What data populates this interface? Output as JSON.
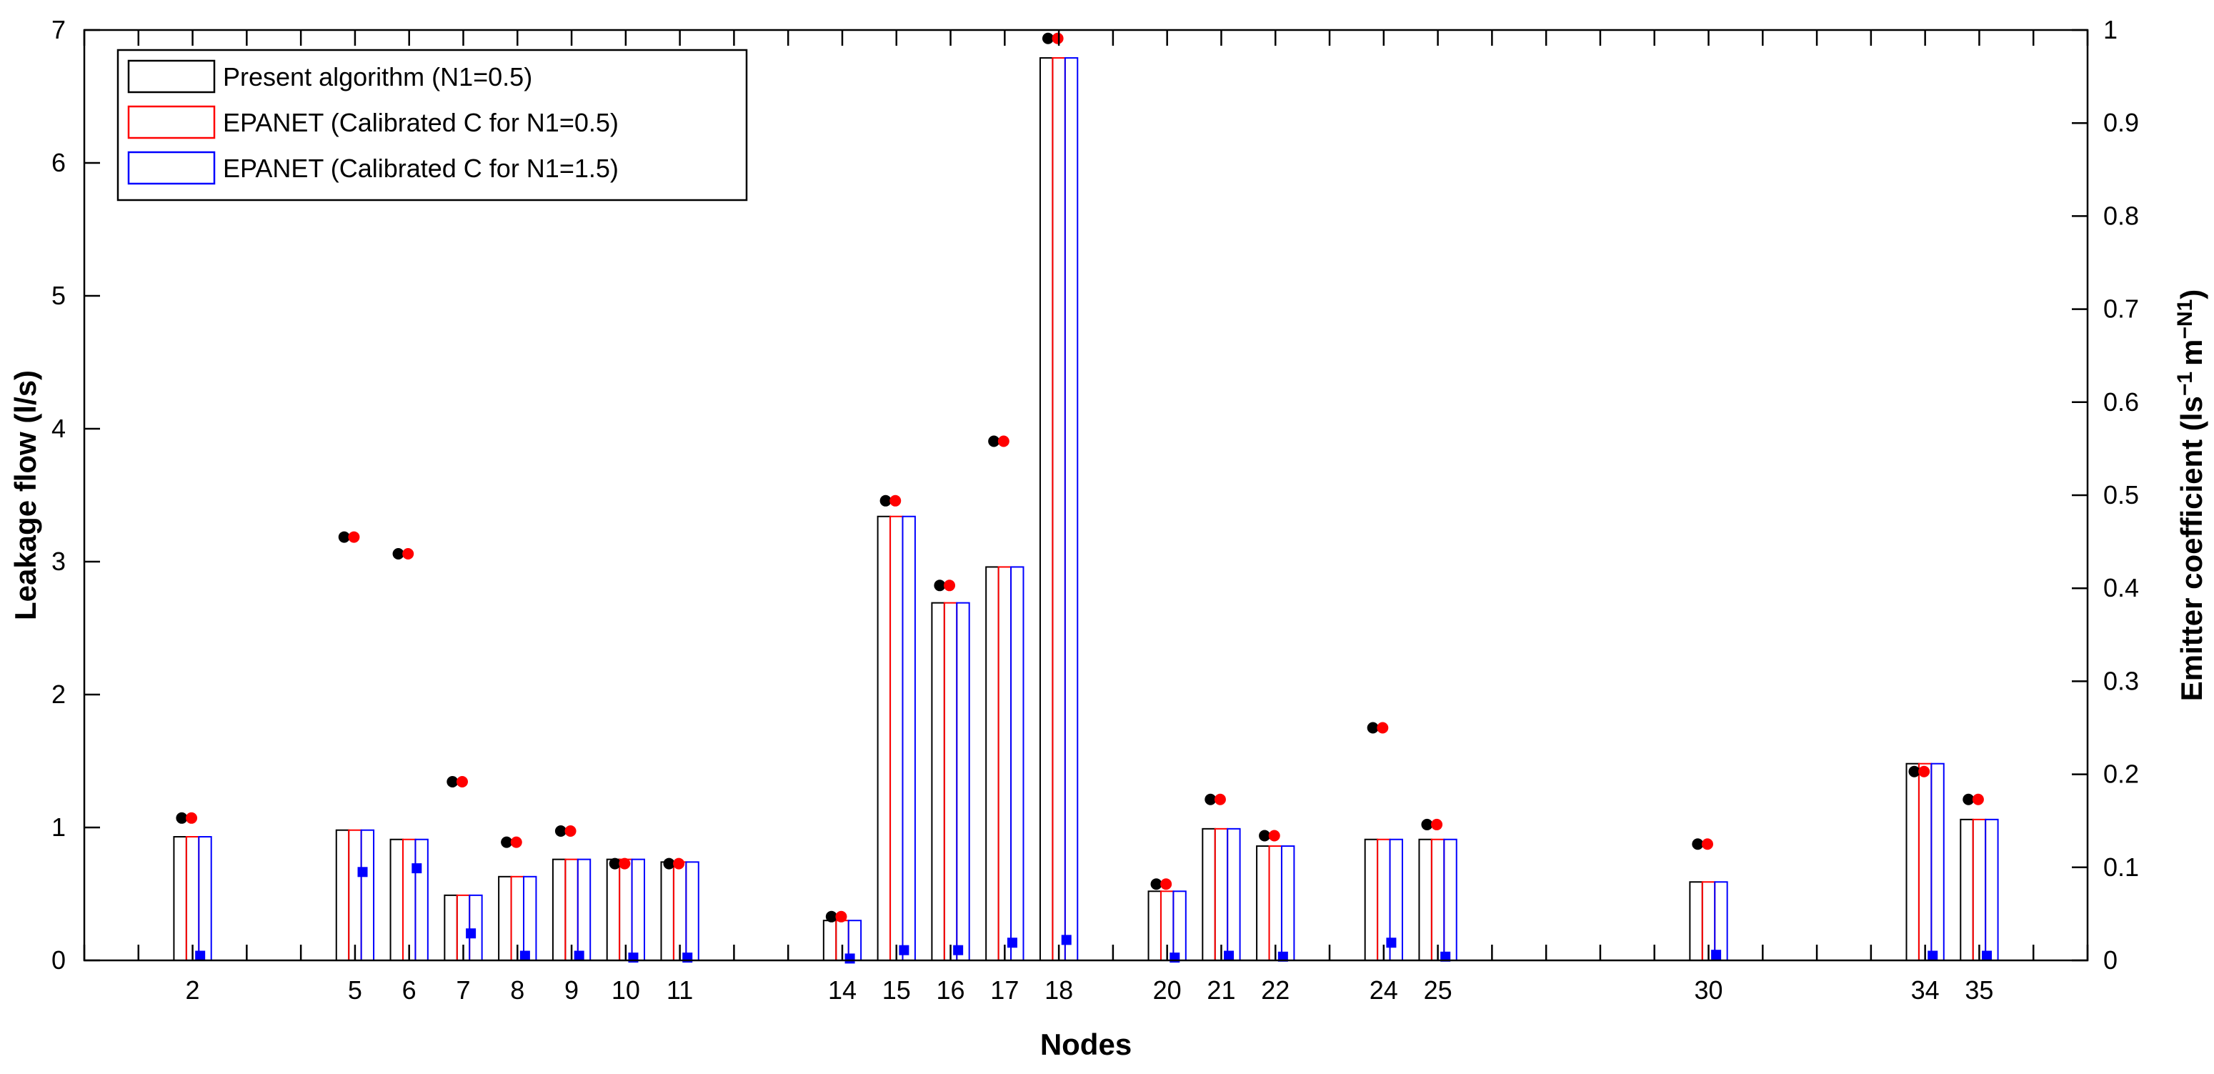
{
  "chart_data": {
    "type": "bar",
    "title": "",
    "xlabel": "Nodes",
    "ylabel": "Leakage flow (l/s)",
    "y2label": "Emitter coefficient (ls",
    "y2label_sup1": "−1",
    "y2label_mid": "m",
    "y2label_sup2": "−N1",
    "y2label_end": ")",
    "ylim": [
      0,
      7
    ],
    "y2lim": [
      0,
      1
    ],
    "yticks": [
      0,
      1,
      2,
      3,
      4,
      5,
      6,
      7
    ],
    "y2ticks": [
      0,
      0.1,
      0.2,
      0.3,
      0.4,
      0.5,
      0.6,
      0.7,
      0.8,
      0.9,
      1
    ],
    "y2tick_labels": [
      "0",
      "0.1",
      "0.2",
      "0.3",
      "0.4",
      "0.5",
      "0.6",
      "0.7",
      "0.8",
      "0.9",
      "1"
    ],
    "x_range": [
      0,
      37
    ],
    "grid": false,
    "legend_position": "top-left",
    "categories": [
      "2",
      "5",
      "6",
      "7",
      "8",
      "9",
      "10",
      "11",
      "14",
      "15",
      "16",
      "17",
      "18",
      "20",
      "21",
      "22",
      "24",
      "25",
      "30",
      "34",
      "35"
    ],
    "series": [
      {
        "name": "Present algorithm (N1=0.5)",
        "axis": "left",
        "kind": "bar",
        "color": "#000000",
        "values": [
          0.93,
          0.98,
          0.91,
          0.49,
          0.63,
          0.76,
          0.76,
          0.74,
          0.3,
          3.34,
          2.69,
          2.96,
          6.79,
          0.52,
          0.99,
          0.86,
          0.91,
          0.91,
          0.59,
          1.48,
          1.06
        ]
      },
      {
        "name": "EPANET (Calibrated C for N1=0.5)",
        "axis": "left",
        "kind": "bar",
        "color": "#ff0000",
        "values": [
          0.93,
          0.98,
          0.91,
          0.49,
          0.63,
          0.76,
          0.76,
          0.74,
          0.3,
          3.34,
          2.69,
          2.96,
          6.79,
          0.52,
          0.99,
          0.86,
          0.91,
          0.91,
          0.59,
          1.48,
          1.06
        ]
      },
      {
        "name": "EPANET (Calibrated C for N1=1.5)",
        "axis": "left",
        "kind": "bar",
        "color": "#0000ff",
        "values": [
          0.93,
          0.98,
          0.91,
          0.49,
          0.63,
          0.76,
          0.76,
          0.74,
          0.3,
          3.34,
          2.69,
          2.96,
          6.79,
          0.52,
          0.99,
          0.86,
          0.91,
          0.91,
          0.59,
          1.48,
          1.06
        ]
      },
      {
        "axis": "right",
        "kind": "marker",
        "marker": "circle",
        "color": "#000000",
        "values": [
          0.153,
          0.455,
          0.437,
          0.192,
          0.127,
          0.139,
          0.104,
          0.104,
          0.047,
          0.494,
          0.403,
          0.558,
          0.991,
          0.082,
          0.173,
          0.134,
          0.25,
          0.146,
          0.125,
          0.203,
          0.173
        ]
      },
      {
        "axis": "right",
        "kind": "marker",
        "marker": "circle",
        "color": "#ff0000",
        "values": [
          0.153,
          0.455,
          0.437,
          0.192,
          0.127,
          0.139,
          0.104,
          0.104,
          0.047,
          0.494,
          0.403,
          0.558,
          0.991,
          0.082,
          0.173,
          0.134,
          0.25,
          0.146,
          0.125,
          0.203,
          0.173
        ]
      },
      {
        "axis": "right",
        "kind": "marker",
        "marker": "square",
        "color": "#0000ff",
        "values": [
          0.005,
          0.095,
          0.099,
          0.029,
          0.005,
          0.005,
          0.003,
          0.003,
          0.002,
          0.011,
          0.011,
          0.019,
          0.022,
          0.003,
          0.005,
          0.004,
          0.019,
          0.004,
          0.006,
          0.005,
          0.005
        ]
      }
    ]
  }
}
